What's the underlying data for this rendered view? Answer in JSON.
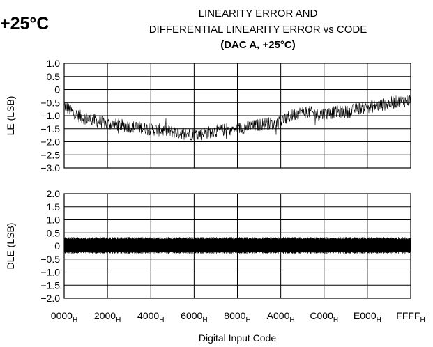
{
  "corner_label": "+25°C",
  "chart_data": {
    "title_lines": [
      "LINEARITY ERROR AND",
      "DIFFERENTIAL LINEARITY ERROR vs CODE"
    ],
    "subtitle": "(DAC A, +25°C)",
    "type": "line",
    "xlabel": "Digital Input Code",
    "x_ticks": [
      "0000",
      "2000",
      "4000",
      "6000",
      "8000",
      "A000",
      "C000",
      "E000",
      "FFFF"
    ],
    "x_tick_subscript": "H",
    "xlim": [
      0,
      65535
    ],
    "panels": [
      {
        "name": "LE",
        "ylabel": "LE (LSB)",
        "ylim": [
          -3.0,
          1.0
        ],
        "y_ticks": [
          "1.0",
          "0.5",
          "0",
          "−0.5",
          "−1.0",
          "−1.5",
          "−2.0",
          "−2.5",
          "−3.0"
        ],
        "y_tick_values": [
          1.0,
          0.5,
          0,
          -0.5,
          -1.0,
          -1.5,
          -2.0,
          -2.5,
          -3.0
        ],
        "color": "#000000",
        "series": [
          {
            "x": [
              0,
              2000,
              4000,
              6000,
              8000,
              10000,
              12000,
              14000,
              16000,
              18000,
              20000,
              22000,
              24000,
              26000,
              28000,
              30000,
              32000,
              34000,
              36000,
              38000,
              40000,
              42000,
              44000,
              46000,
              48000,
              50000,
              52000,
              54000,
              56000,
              58000,
              60000,
              62000,
              64000,
              65535
            ],
            "y": [
              -0.6,
              -0.95,
              -1.1,
              -1.2,
              -1.3,
              -1.35,
              -1.4,
              -1.45,
              -1.5,
              -1.55,
              -1.6,
              -1.65,
              -1.7,
              -1.7,
              -1.6,
              -1.55,
              -1.5,
              -1.45,
              -1.4,
              -1.3,
              -1.3,
              -1.1,
              -0.9,
              -0.85,
              -0.95,
              -0.9,
              -0.85,
              -0.85,
              -0.7,
              -0.65,
              -0.6,
              -0.5,
              -0.45,
              -0.4
            ],
            "noise_band": 0.25
          }
        ]
      },
      {
        "name": "DLE",
        "ylabel": "DLE (LSB)",
        "ylim": [
          -2.0,
          2.0
        ],
        "y_ticks": [
          "2.0",
          "1.5",
          "1.0",
          "0.5",
          "0",
          "−0.5",
          "−1.0",
          "−1.5",
          "−2.0"
        ],
        "y_tick_values": [
          2.0,
          1.5,
          1.0,
          0.5,
          0,
          -0.5,
          -1.0,
          -1.5,
          -2.0
        ],
        "color": "#000000",
        "series": [
          {
            "x": [
              0,
              8000,
              16000,
              24000,
              32000,
              40000,
              48000,
              56000,
              65535
            ],
            "y": [
              0.05,
              0.05,
              0.05,
              0.05,
              0.05,
              0.05,
              0.04,
              0.04,
              0.04
            ],
            "band": [
              -0.25,
              0.3
            ]
          }
        ]
      }
    ],
    "grid": true
  }
}
